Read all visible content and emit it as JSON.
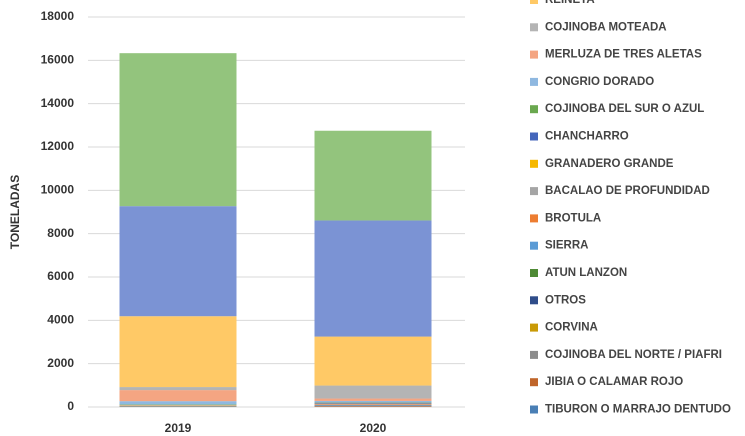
{
  "chart_data": {
    "type": "stacked_bar",
    "y_label": "TONELADAS",
    "categories": [
      "2019",
      "2020"
    ],
    "ylim": [
      0,
      18000
    ],
    "yticks": [
      0,
      2000,
      4000,
      6000,
      8000,
      10000,
      12000,
      14000,
      16000,
      18000
    ],
    "grid": true,
    "series": [
      {
        "color": "#93c47d",
        "values": [
          7060,
          4140
        ]
      },
      {
        "color": "#7b93d4",
        "values": [
          5080,
          5360
        ]
      },
      {
        "name": "REINETA",
        "color": "#ffc966",
        "values": [
          3270,
          2260
        ]
      },
      {
        "name": "COJINOBA MOTEADA",
        "color": "#b4b4b4",
        "values": [
          140,
          600
        ]
      },
      {
        "name": "MERLUZA DE TRES ALETAS",
        "color": "#f4a582",
        "values": [
          510,
          110
        ]
      },
      {
        "name": "CONGRIO DORADO",
        "color": "#8fb8e0",
        "values": [
          150,
          60
        ]
      },
      {
        "name": "COJINOBA DEL SUR O AZUL",
        "color": "#6aa84f",
        "values": [
          20,
          20
        ]
      },
      {
        "name": "CHANCHARRO",
        "color": "#4466bb",
        "values": [
          10,
          40
        ]
      },
      {
        "name": "GRANADERO GRANDE",
        "color": "#f6b800",
        "values": [
          10,
          10
        ]
      },
      {
        "name": "BACALAO DE PROFUNDIDAD",
        "color": "#a5a5a5",
        "values": [
          20,
          20
        ]
      },
      {
        "name": "BROTULA",
        "color": "#ed7d31",
        "values": [
          10,
          30
        ]
      },
      {
        "name": "SIERRA",
        "color": "#5b9bd5",
        "values": [
          10,
          20
        ]
      },
      {
        "name": "ATUN LANZON",
        "color": "#4e8a35",
        "values": [
          5,
          5
        ]
      },
      {
        "name": "OTROS",
        "color": "#2f4d8a",
        "values": [
          10,
          20
        ]
      },
      {
        "name": "CORVINA",
        "color": "#c99a06",
        "values": [
          5,
          5
        ]
      },
      {
        "name": "COJINOBA DEL NORTE / PIAFRI",
        "color": "#8c8c8c",
        "values": [
          5,
          10
        ]
      },
      {
        "name": "JIBIA O CALAMAR ROJO",
        "color": "#c0652a",
        "values": [
          10,
          30
        ]
      },
      {
        "name": "TIBURON O MARRAJO DENTUDO",
        "color": "#4a7fb5",
        "values": [
          5,
          10
        ]
      }
    ]
  }
}
